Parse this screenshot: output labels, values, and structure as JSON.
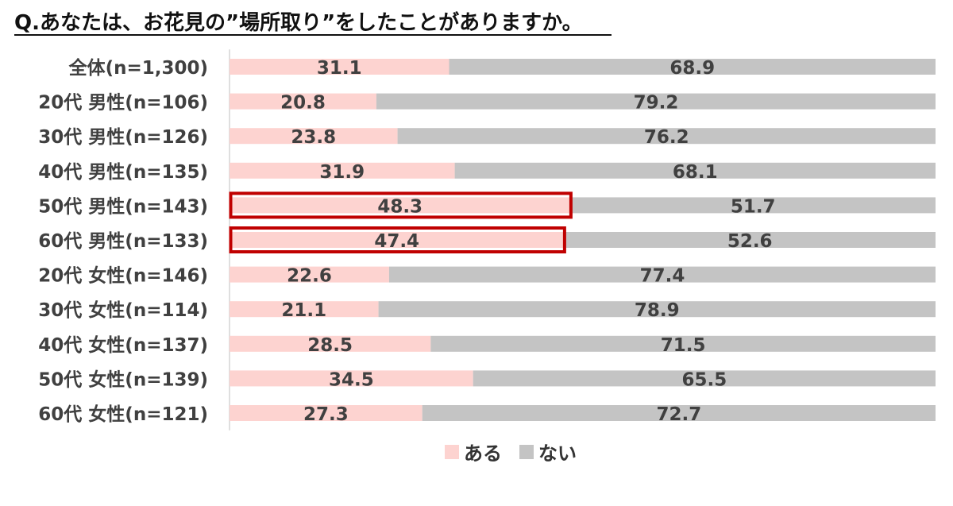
{
  "title": "Q.あなたは、お花見の”場所取り”をしたことがありますか。",
  "chart_data": {
    "type": "bar",
    "orientation": "horizontal",
    "stacked": true,
    "percent": true,
    "xlim": [
      0,
      100
    ],
    "categories": [
      "全体(n=1,300)",
      "20代 男性(n=106)",
      "30代 男性(n=126)",
      "40代 男性(n=135)",
      "50代 男性(n=143)",
      "60代 男性(n=133)",
      "20代 女性(n=146)",
      "30代 女性(n=114)",
      "40代 女性(n=137)",
      "50代 女性(n=139)",
      "60代 女性(n=121)"
    ],
    "series": [
      {
        "name": "ある",
        "color": "#fdd3d0",
        "values": [
          31.1,
          20.8,
          23.8,
          31.9,
          48.3,
          47.4,
          22.6,
          21.1,
          28.5,
          34.5,
          27.3
        ],
        "labels": [
          "31.1",
          "20.8",
          "23.8",
          "31.9",
          "48.3",
          "47.4",
          "22.6",
          "21.1",
          "28.5",
          "34.5",
          "27.3"
        ]
      },
      {
        "name": "ない",
        "color": "#c4c4c4",
        "values": [
          68.9,
          79.2,
          76.2,
          68.1,
          51.7,
          52.6,
          77.4,
          78.9,
          71.5,
          65.5,
          72.7
        ],
        "labels": [
          "68.9",
          "79.2",
          "76.2",
          "68.1",
          "51.7",
          "52.6",
          "77.4",
          "78.9",
          "71.5",
          "65.5",
          "72.7"
        ]
      }
    ],
    "highlighted_categories": [
      "50代 男性(n=143)",
      "60代 男性(n=133)"
    ],
    "highlight_color": "#c00000",
    "legend_position": "bottom",
    "grid": false
  }
}
